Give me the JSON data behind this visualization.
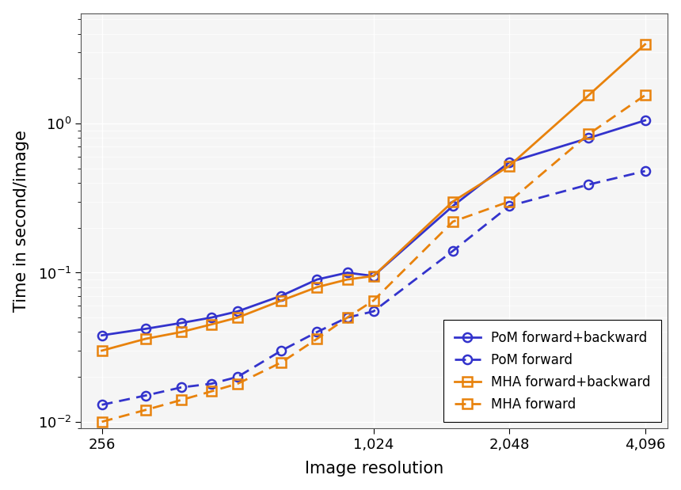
{
  "x_values": [
    256,
    320,
    384,
    448,
    512,
    640,
    768,
    896,
    1024,
    1536,
    2048,
    3072,
    4096
  ],
  "pom_fb": [
    0.038,
    0.042,
    0.046,
    0.05,
    0.055,
    0.07,
    0.09,
    0.1,
    0.095,
    0.28,
    0.55,
    0.8,
    1.05
  ],
  "pom_f": [
    0.013,
    0.015,
    0.017,
    0.018,
    0.02,
    0.03,
    0.04,
    0.05,
    0.055,
    0.14,
    0.28,
    0.39,
    0.48
  ],
  "mha_fb": [
    0.03,
    0.036,
    0.04,
    0.045,
    0.05,
    0.065,
    0.08,
    0.09,
    0.095,
    0.3,
    0.52,
    1.55,
    3.4
  ],
  "mha_f": [
    0.01,
    0.012,
    0.014,
    0.016,
    0.018,
    0.025,
    0.036,
    0.05,
    0.065,
    0.22,
    0.3,
    0.85,
    1.55
  ],
  "pom_color": "#3333cc",
  "mha_color": "#e8820c",
  "xlabel": "Image resolution",
  "ylabel": "Time in second/image",
  "legend_labels": [
    "PoM forward+backward",
    "PoM forward",
    "MHA forward+backward",
    "MHA forward"
  ],
  "xtick_labels": [
    "256",
    "1,024",
    "2,048",
    "4,096"
  ],
  "xtick_positions": [
    256,
    1024,
    2048,
    4096
  ],
  "ylim_min": 0.009,
  "ylim_max": 5.5,
  "xlim_min": 230,
  "xlim_max": 4600,
  "background_color": "#ffffff",
  "plot_bg_color": "#f5f5f5",
  "grid_color": "#ffffff",
  "fontsize_labels": 15,
  "fontsize_ticks": 13,
  "fontsize_legend": 12,
  "linewidth": 2.0,
  "markersize": 8
}
